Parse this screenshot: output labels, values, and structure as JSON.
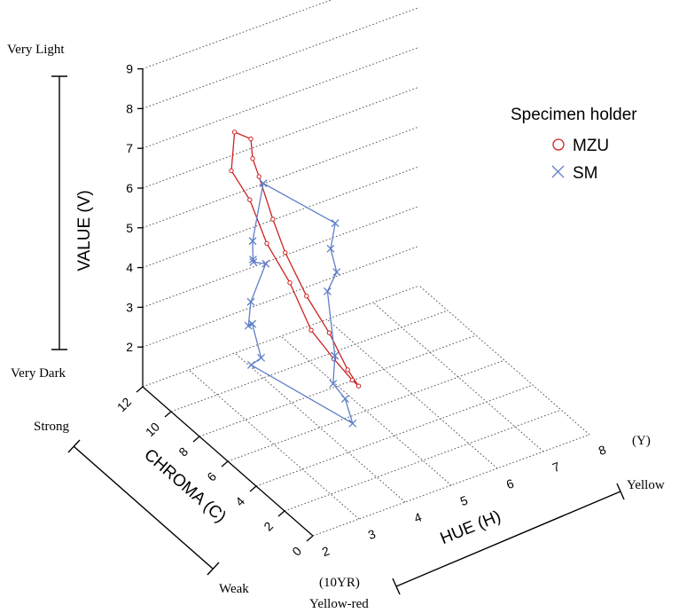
{
  "chart_data": {
    "type": "scatter",
    "subtype": "3d-line",
    "title": "",
    "axes": {
      "value": {
        "label": "VALUE (V)",
        "range": [
          1,
          9
        ],
        "ticks": [
          "2",
          "3",
          "4",
          "5",
          "6",
          "7",
          "8",
          "9"
        ],
        "top_label": "Very Light",
        "bottom_label": "Very Dark"
      },
      "chroma": {
        "label": "CHROMA (C)",
        "range": [
          0,
          12
        ],
        "ticks": [
          "0",
          "2",
          "4",
          "6",
          "8",
          "10",
          "12"
        ],
        "high_label": "Strong",
        "low_label": "Weak"
      },
      "hue": {
        "label": "HUE (H)",
        "range": [
          2,
          8
        ],
        "ticks": [
          "2",
          "3",
          "4",
          "5",
          "6",
          "7",
          "8"
        ],
        "low_label_code": "(10YR)",
        "low_label": "Yellow-red",
        "high_label_code": "(Y)",
        "high_label": "Yellow"
      }
    },
    "grid": true,
    "legend": {
      "title": "Specimen holder",
      "position": "right"
    },
    "series": [
      {
        "name": "MZU",
        "marker": "circle",
        "color": "#cc2222",
        "points": [
          {
            "h": 2.3,
            "c": 6.5,
            "v": 9.0
          },
          {
            "h": 2.5,
            "c": 6.0,
            "v": 8.9
          },
          {
            "h": 2.6,
            "c": 6.2,
            "v": 8.3
          },
          {
            "h": 2.8,
            "c": 6.4,
            "v": 7.7
          },
          {
            "h": 3.1,
            "c": 6.4,
            "v": 6.5
          },
          {
            "h": 3.4,
            "c": 6.5,
            "v": 5.5
          },
          {
            "h": 3.8,
            "c": 6.3,
            "v": 4.3
          },
          {
            "h": 4.2,
            "c": 6.0,
            "v": 3.3
          },
          {
            "h": 4.6,
            "c": 6.0,
            "v": 2.2
          },
          {
            "h": 4.9,
            "c": 6.2,
            "v": 1.6
          },
          {
            "h": 4.7,
            "c": 6.0,
            "v": 1.9
          },
          {
            "h": 4.3,
            "c": 6.0,
            "v": 2.6
          },
          {
            "h": 3.9,
            "c": 6.3,
            "v": 3.4
          },
          {
            "h": 3.5,
            "c": 6.5,
            "v": 4.7
          },
          {
            "h": 3.0,
            "c": 6.5,
            "v": 5.9
          },
          {
            "h": 2.6,
            "c": 6.4,
            "v": 7.2
          },
          {
            "h": 2.2,
            "c": 6.4,
            "v": 8.1
          }
        ]
      },
      {
        "name": "SM",
        "marker": "x",
        "color": "#5f7fc8",
        "points": [
          {
            "h": 3.6,
            "c": 2.4,
            "v": 2.4
          },
          {
            "h": 3.5,
            "c": 2.6,
            "v": 3.0
          },
          {
            "h": 3.3,
            "c": 2.8,
            "v": 3.4
          },
          {
            "h": 3.4,
            "c": 3.0,
            "v": 4.0
          },
          {
            "h": 3.3,
            "c": 3.2,
            "v": 5.6
          },
          {
            "h": 3.5,
            "c": 3.2,
            "v": 6.0
          },
          {
            "h": 3.4,
            "c": 3.3,
            "v": 6.6
          },
          {
            "h": 3.5,
            "c": 3.3,
            "v": 7.2
          },
          {
            "h": 2.4,
            "c": 4.8,
            "v": 8.2
          },
          {
            "h": 2.2,
            "c": 4.9,
            "v": 6.8
          },
          {
            "h": 2.3,
            "c": 5.2,
            "v": 6.2
          },
          {
            "h": 2.4,
            "c": 5.5,
            "v": 6.0
          },
          {
            "h": 2.7,
            "c": 5.6,
            "v": 5.8
          },
          {
            "h": 2.5,
            "c": 6.0,
            "v": 4.8
          },
          {
            "h": 2.6,
            "c": 6.5,
            "v": 4.0
          },
          {
            "h": 2.9,
            "c": 7.2,
            "v": 3.7
          },
          {
            "h": 3.0,
            "c": 6.9,
            "v": 2.9
          },
          {
            "h": 3.0,
            "c": 7.6,
            "v": 2.5
          }
        ]
      }
    ]
  }
}
